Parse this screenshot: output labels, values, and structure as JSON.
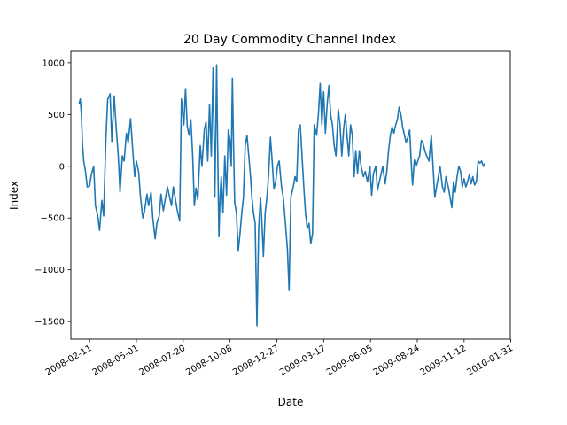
{
  "chart_data": {
    "type": "line",
    "title": "20 Day Commodity Channel Index",
    "xlabel": "Date",
    "ylabel": "Index",
    "x_range": [
      "2008-01-10",
      "2010-01-30"
    ],
    "ylim": [
      -1670,
      1110
    ],
    "grid": false,
    "legend": "none",
    "series_color": "#1f77b4",
    "x_ticks": [
      "2008-02-11",
      "2008-05-01",
      "2008-07-20",
      "2008-10-08",
      "2008-12-27",
      "2009-03-17",
      "2009-06-05",
      "2009-08-24",
      "2009-11-12",
      "2010-01-31"
    ],
    "y_ticks": [
      1000,
      500,
      0,
      -500,
      -1000,
      -1500
    ],
    "series": [
      {
        "values": [
          [
            "2008-01-24",
            600
          ],
          [
            "2008-01-26",
            650
          ],
          [
            "2008-01-28",
            500
          ],
          [
            "2008-01-30",
            200
          ],
          [
            "2008-02-01",
            50
          ],
          [
            "2008-02-04",
            -50
          ],
          [
            "2008-02-07",
            -200
          ],
          [
            "2008-02-11",
            -190
          ],
          [
            "2008-02-14",
            -80
          ],
          [
            "2008-02-18",
            0
          ],
          [
            "2008-02-21",
            -380
          ],
          [
            "2008-02-25",
            -480
          ],
          [
            "2008-02-28",
            -620
          ],
          [
            "2008-03-03",
            -330
          ],
          [
            "2008-03-06",
            -480
          ],
          [
            "2008-03-10",
            280
          ],
          [
            "2008-03-13",
            650
          ],
          [
            "2008-03-17",
            700
          ],
          [
            "2008-03-20",
            240
          ],
          [
            "2008-03-24",
            680
          ],
          [
            "2008-03-27",
            400
          ],
          [
            "2008-03-31",
            100
          ],
          [
            "2008-04-03",
            -250
          ],
          [
            "2008-04-07",
            100
          ],
          [
            "2008-04-10",
            50
          ],
          [
            "2008-04-14",
            320
          ],
          [
            "2008-04-17",
            230
          ],
          [
            "2008-04-21",
            460
          ],
          [
            "2008-04-24",
            220
          ],
          [
            "2008-04-28",
            -100
          ],
          [
            "2008-05-01",
            50
          ],
          [
            "2008-05-05",
            -60
          ],
          [
            "2008-05-08",
            -300
          ],
          [
            "2008-05-12",
            -500
          ],
          [
            "2008-05-15",
            -430
          ],
          [
            "2008-05-19",
            -270
          ],
          [
            "2008-05-22",
            -380
          ],
          [
            "2008-05-26",
            -250
          ],
          [
            "2008-05-29",
            -500
          ],
          [
            "2008-06-02",
            -700
          ],
          [
            "2008-06-05",
            -550
          ],
          [
            "2008-06-09",
            -480
          ],
          [
            "2008-06-12",
            -270
          ],
          [
            "2008-06-16",
            -430
          ],
          [
            "2008-06-19",
            -330
          ],
          [
            "2008-06-23",
            -200
          ],
          [
            "2008-06-26",
            -280
          ],
          [
            "2008-06-30",
            -380
          ],
          [
            "2008-07-03",
            -200
          ],
          [
            "2008-07-07",
            -330
          ],
          [
            "2008-07-10",
            -430
          ],
          [
            "2008-07-14",
            -530
          ],
          [
            "2008-07-17",
            650
          ],
          [
            "2008-07-21",
            400
          ],
          [
            "2008-07-24",
            750
          ],
          [
            "2008-07-27",
            380
          ],
          [
            "2008-07-30",
            300
          ],
          [
            "2008-08-02",
            450
          ],
          [
            "2008-08-05",
            120
          ],
          [
            "2008-08-08",
            -380
          ],
          [
            "2008-08-11",
            -210
          ],
          [
            "2008-08-14",
            -320
          ],
          [
            "2008-08-18",
            200
          ],
          [
            "2008-08-21",
            0
          ],
          [
            "2008-08-25",
            350
          ],
          [
            "2008-08-28",
            430
          ],
          [
            "2008-08-31",
            50
          ],
          [
            "2008-09-03",
            600
          ],
          [
            "2008-09-06",
            100
          ],
          [
            "2008-09-09",
            950
          ],
          [
            "2008-09-12",
            -300
          ],
          [
            "2008-09-15",
            980
          ],
          [
            "2008-09-17",
            100
          ],
          [
            "2008-09-19",
            -680
          ],
          [
            "2008-09-21",
            -300
          ],
          [
            "2008-09-23",
            -100
          ],
          [
            "2008-09-26",
            -450
          ],
          [
            "2008-09-29",
            100
          ],
          [
            "2008-10-02",
            -280
          ],
          [
            "2008-10-05",
            350
          ],
          [
            "2008-10-08",
            250
          ],
          [
            "2008-10-10",
            0
          ],
          [
            "2008-10-12",
            850
          ],
          [
            "2008-10-14",
            200
          ],
          [
            "2008-10-16",
            -350
          ],
          [
            "2008-10-19",
            -450
          ],
          [
            "2008-10-22",
            -820
          ],
          [
            "2008-10-25",
            -650
          ],
          [
            "2008-10-28",
            -450
          ],
          [
            "2008-10-31",
            -300
          ],
          [
            "2008-11-03",
            200
          ],
          [
            "2008-11-06",
            300
          ],
          [
            "2008-11-09",
            100
          ],
          [
            "2008-11-12",
            -100
          ],
          [
            "2008-11-14",
            -280
          ],
          [
            "2008-11-17",
            -450
          ],
          [
            "2008-11-20",
            -550
          ],
          [
            "2008-11-23",
            -1540
          ],
          [
            "2008-11-26",
            -600
          ],
          [
            "2008-11-29",
            -300
          ],
          [
            "2008-12-01",
            -480
          ],
          [
            "2008-12-04",
            -870
          ],
          [
            "2008-12-07",
            -450
          ],
          [
            "2008-12-10",
            -300
          ],
          [
            "2008-12-13",
            -80
          ],
          [
            "2008-12-16",
            280
          ],
          [
            "2008-12-19",
            50
          ],
          [
            "2008-12-22",
            -220
          ],
          [
            "2008-12-25",
            -150
          ],
          [
            "2008-12-28",
            0
          ],
          [
            "2008-12-31",
            50
          ],
          [
            "2009-01-04",
            -200
          ],
          [
            "2009-01-07",
            -300
          ],
          [
            "2009-01-10",
            -500
          ],
          [
            "2009-01-14",
            -800
          ],
          [
            "2009-01-17",
            -1200
          ],
          [
            "2009-01-20",
            -300
          ],
          [
            "2009-01-24",
            -200
          ],
          [
            "2009-01-27",
            -100
          ],
          [
            "2009-01-30",
            -150
          ],
          [
            "2009-02-02",
            350
          ],
          [
            "2009-02-05",
            400
          ],
          [
            "2009-02-08",
            100
          ],
          [
            "2009-02-11",
            -200
          ],
          [
            "2009-02-14",
            -450
          ],
          [
            "2009-02-17",
            -600
          ],
          [
            "2009-02-20",
            -550
          ],
          [
            "2009-02-23",
            -750
          ],
          [
            "2009-02-26",
            -650
          ],
          [
            "2009-03-01",
            400
          ],
          [
            "2009-03-05",
            300
          ],
          [
            "2009-03-08",
            500
          ],
          [
            "2009-03-11",
            800
          ],
          [
            "2009-03-14",
            400
          ],
          [
            "2009-03-17",
            720
          ],
          [
            "2009-03-20",
            320
          ],
          [
            "2009-03-23",
            600
          ],
          [
            "2009-03-26",
            780
          ],
          [
            "2009-03-29",
            500
          ],
          [
            "2009-04-01",
            400
          ],
          [
            "2009-04-04",
            200
          ],
          [
            "2009-04-07",
            100
          ],
          [
            "2009-04-11",
            550
          ],
          [
            "2009-04-14",
            400
          ],
          [
            "2009-04-17",
            100
          ],
          [
            "2009-04-20",
            350
          ],
          [
            "2009-04-23",
            500
          ],
          [
            "2009-04-26",
            300
          ],
          [
            "2009-04-29",
            100
          ],
          [
            "2009-05-02",
            400
          ],
          [
            "2009-05-05",
            300
          ],
          [
            "2009-05-08",
            -100
          ],
          [
            "2009-05-11",
            150
          ],
          [
            "2009-05-14",
            -70
          ],
          [
            "2009-05-17",
            150
          ],
          [
            "2009-05-20",
            0
          ],
          [
            "2009-05-24",
            -100
          ],
          [
            "2009-05-27",
            -50
          ],
          [
            "2009-05-31",
            -150
          ],
          [
            "2009-06-04",
            0
          ],
          [
            "2009-06-07",
            -280
          ],
          [
            "2009-06-10",
            -70
          ],
          [
            "2009-06-14",
            0
          ],
          [
            "2009-06-17",
            -230
          ],
          [
            "2009-06-20",
            -150
          ],
          [
            "2009-06-23",
            -80
          ],
          [
            "2009-06-26",
            0
          ],
          [
            "2009-06-30",
            -170
          ],
          [
            "2009-07-03",
            -50
          ],
          [
            "2009-07-06",
            150
          ],
          [
            "2009-07-09",
            300
          ],
          [
            "2009-07-12",
            380
          ],
          [
            "2009-07-15",
            320
          ],
          [
            "2009-07-18",
            400
          ],
          [
            "2009-07-21",
            450
          ],
          [
            "2009-07-24",
            570
          ],
          [
            "2009-07-27",
            500
          ],
          [
            "2009-07-30",
            380
          ],
          [
            "2009-08-02",
            300
          ],
          [
            "2009-08-05",
            230
          ],
          [
            "2009-08-08",
            280
          ],
          [
            "2009-08-11",
            350
          ],
          [
            "2009-08-14",
            0
          ],
          [
            "2009-08-16",
            -180
          ],
          [
            "2009-08-19",
            60
          ],
          [
            "2009-08-22",
            0
          ],
          [
            "2009-08-25",
            50
          ],
          [
            "2009-08-28",
            100
          ],
          [
            "2009-08-31",
            250
          ],
          [
            "2009-09-03",
            220
          ],
          [
            "2009-09-06",
            150
          ],
          [
            "2009-09-09",
            100
          ],
          [
            "2009-09-13",
            50
          ],
          [
            "2009-09-17",
            300
          ],
          [
            "2009-09-20",
            0
          ],
          [
            "2009-09-23",
            -300
          ],
          [
            "2009-09-26",
            -200
          ],
          [
            "2009-09-29",
            -100
          ],
          [
            "2009-10-02",
            0
          ],
          [
            "2009-10-06",
            -200
          ],
          [
            "2009-10-09",
            -250
          ],
          [
            "2009-10-12",
            -100
          ],
          [
            "2009-10-16",
            -200
          ],
          [
            "2009-10-19",
            -300
          ],
          [
            "2009-10-22",
            -400
          ],
          [
            "2009-10-25",
            -150
          ],
          [
            "2009-10-28",
            -250
          ],
          [
            "2009-10-31",
            -100
          ],
          [
            "2009-11-03",
            0
          ],
          [
            "2009-11-06",
            -50
          ],
          [
            "2009-11-09",
            -200
          ],
          [
            "2009-11-12",
            -120
          ],
          [
            "2009-11-15",
            -200
          ],
          [
            "2009-11-18",
            -150
          ],
          [
            "2009-11-21",
            -80
          ],
          [
            "2009-11-24",
            -170
          ],
          [
            "2009-11-27",
            -100
          ],
          [
            "2009-11-30",
            -180
          ],
          [
            "2009-12-03",
            -150
          ],
          [
            "2009-12-06",
            50
          ],
          [
            "2009-12-09",
            30
          ],
          [
            "2009-12-12",
            50
          ],
          [
            "2009-12-15",
            0
          ],
          [
            "2009-12-18",
            30
          ]
        ]
      }
    ]
  }
}
